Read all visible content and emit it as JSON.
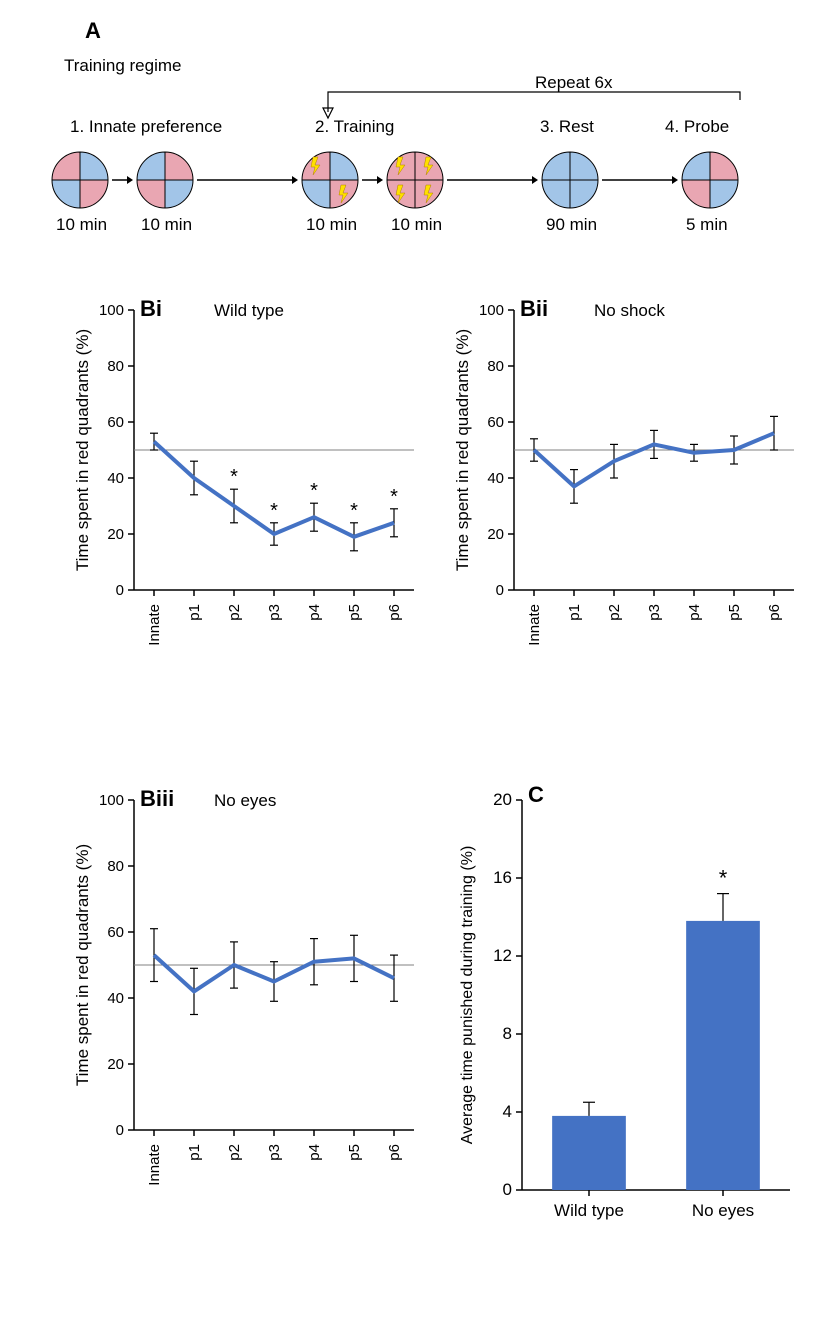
{
  "panelA": {
    "label": "A",
    "title": "Training regime",
    "repeat_text": "Repeat 6x",
    "steps": [
      {
        "num": "1. Innate preference",
        "dur": "10 min",
        "times": 2,
        "quads": [
          [
            "#e9a6b2",
            "#a2c5e8",
            "#a2c5e8",
            "#e9a6b2"
          ],
          [
            "#a2c5e8",
            "#e9a6b2",
            "#e9a6b2",
            "#a2c5e8"
          ]
        ],
        "shock": [
          false,
          false
        ]
      },
      {
        "num": "2. Training",
        "dur": "10 min",
        "times": 2,
        "quads": [
          [
            "#e9a6b2",
            "#a2c5e8",
            "#a2c5e8",
            "#e9a6b2"
          ],
          [
            "#e9a6b2",
            "#e9a6b2",
            "#e9a6b2",
            "#e9a6b2"
          ]
        ],
        "shock": [
          true,
          true
        ]
      },
      {
        "num": "3. Rest",
        "dur": "90 min",
        "times": 1,
        "quads": [
          [
            "#a2c5e8",
            "#a2c5e8",
            "#a2c5e8",
            "#a2c5e8"
          ]
        ],
        "shock": [
          false
        ]
      },
      {
        "num": "4. Probe",
        "dur": "5 min",
        "times": 1,
        "quads": [
          [
            "#a2c5e8",
            "#e9a6b2",
            "#e9a6b2",
            "#a2c5e8"
          ]
        ],
        "shock": [
          false
        ]
      }
    ],
    "fontsize_label": 22,
    "fontsize_step": 17,
    "fontsize_dur": 17,
    "text_color": "#000000",
    "circle_stroke": "#000000",
    "circle_r": 28
  },
  "charts": {
    "ylabel": "Time spent in red quadrants (%)",
    "xlabels": [
      "Innate",
      "p1",
      "p2",
      "p3",
      "p4",
      "p5",
      "p6"
    ],
    "ylim": [
      0,
      100
    ],
    "ytick_step": 20,
    "line_color": "#4472c4",
    "line_width": 4,
    "ref_color": "#808080",
    "ref_width": 1,
    "axis_color": "#000000",
    "axis_width": 1.5,
    "tick_fontsize": 15,
    "label_fontsize": 17,
    "err_color": "#000000",
    "err_width": 1.2,
    "cap_w": 4,
    "sig_color": "#000000",
    "bi": {
      "label": "Bi",
      "title": "Wild type",
      "vals": [
        53,
        40,
        30,
        20,
        26,
        19,
        24
      ],
      "err": [
        3,
        6,
        6,
        4,
        5,
        5,
        5
      ],
      "sig": [
        false,
        false,
        true,
        true,
        true,
        true,
        true
      ],
      "ref": 50
    },
    "bii": {
      "label": "Bii",
      "title": "No shock",
      "vals": [
        50,
        37,
        46,
        52,
        49,
        50,
        56
      ],
      "err": [
        4,
        6,
        6,
        5,
        3,
        5,
        6
      ],
      "sig": [
        false,
        false,
        false,
        false,
        false,
        false,
        false
      ],
      "ref": 50
    },
    "biii": {
      "label": "Biii",
      "title": "No eyes",
      "vals": [
        53,
        42,
        50,
        45,
        51,
        52,
        46
      ],
      "err": [
        8,
        7,
        7,
        6,
        7,
        7,
        7
      ],
      "sig": [
        false,
        false,
        false,
        false,
        false,
        false,
        false
      ],
      "ref": 50
    }
  },
  "panelC": {
    "label": "C",
    "ylabel": "Average time punished during training (%)",
    "ylim": [
      0,
      20
    ],
    "ytick_step": 4,
    "bars": [
      {
        "label": "Wild type",
        "val": 3.8,
        "err": 0.7,
        "sig": false
      },
      {
        "label": "No eyes",
        "val": 13.8,
        "err": 1.4,
        "sig": true
      }
    ],
    "bar_color": "#4472c4",
    "bar_width": 0.55,
    "axis_color": "#000000",
    "axis_width": 1.5,
    "err_color": "#000000",
    "err_width": 1.2,
    "cap_w": 6,
    "tick_fontsize": 17,
    "label_fontsize": 16
  }
}
